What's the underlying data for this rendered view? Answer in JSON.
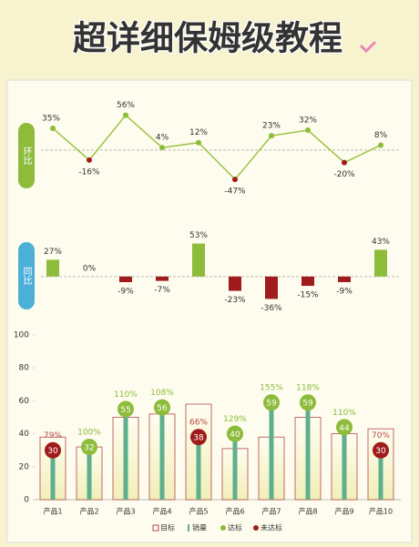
{
  "title": "超详细保姆级教程",
  "chart_data": [
    {
      "type": "line",
      "label": "环比",
      "values": [
        35,
        -16,
        56,
        4,
        12,
        -47,
        23,
        32,
        -20,
        8
      ],
      "value_labels": [
        "35%",
        "-16%",
        "56%",
        "4%",
        "12%",
        "-47%",
        "23%",
        "32%",
        "-20%",
        "8%"
      ],
      "color": "#9cc444",
      "positive_color": "#8dbb3a",
      "negative_color": "#a01c1c",
      "ylim": [
        -60,
        70
      ]
    },
    {
      "type": "bar",
      "label": "同比",
      "values": [
        27,
        0,
        -9,
        -7,
        53,
        -23,
        -36,
        -15,
        -9,
        43
      ],
      "value_labels": [
        "27%",
        "0%",
        "-9%",
        "-7%",
        "53%",
        "-23%",
        "-36%",
        "-15%",
        "-9%",
        "43%"
      ],
      "positive_color": "#8dbb3a",
      "negative_color": "#a01c1c",
      "ylim": [
        -50,
        70
      ]
    },
    {
      "type": "combo",
      "categories": [
        "产品1",
        "产品2",
        "产品3",
        "产品4",
        "产品5",
        "产品6",
        "产品7",
        "产品8",
        "产品9",
        "产品10"
      ],
      "series": [
        {
          "name": "目标",
          "color": "#b5484a",
          "values": [
            38,
            32,
            50,
            52,
            58,
            31,
            38,
            50,
            40,
            43
          ]
        },
        {
          "name": "销量",
          "color": "#5fae8e",
          "values": [
            30,
            32,
            55,
            56,
            38,
            40,
            59,
            59,
            44,
            30
          ]
        }
      ],
      "rates": {
        "values": [
          79,
          100,
          110,
          108,
          66,
          129,
          155,
          118,
          110,
          70
        ],
        "value_labels": [
          "79%",
          "100%",
          "110%",
          "108%",
          "66%",
          "129%",
          "155%",
          "118%",
          "110%",
          "70%"
        ]
      },
      "status": [
        {
          "name": "达标",
          "color": "#8dbb3a"
        },
        {
          "name": "未达标",
          "color": "#a01c1c"
        }
      ],
      "ylim": [
        0,
        100
      ],
      "yticks": [
        0,
        20,
        40,
        60,
        80,
        100
      ]
    }
  ]
}
